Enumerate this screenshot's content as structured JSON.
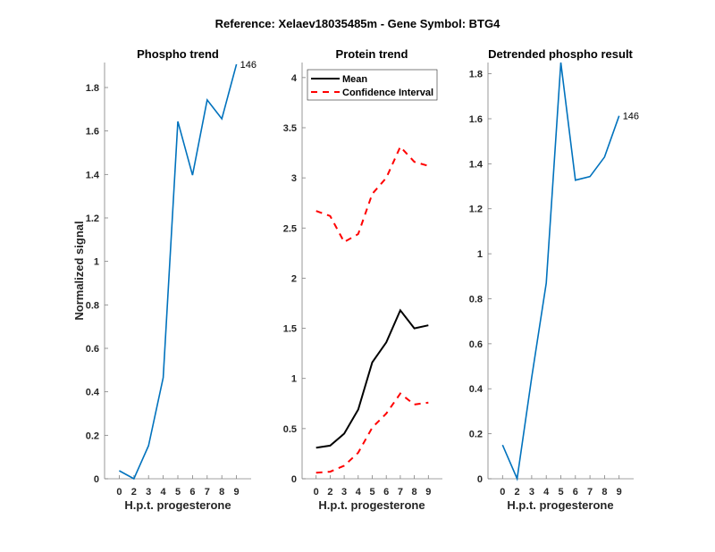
{
  "figure_title": "Reference:  Xelaev18035485m - Gene Symbol:  BTG4",
  "colors": {
    "phospho": "#0072BD",
    "mean": "#000000",
    "ci": "#FF0000",
    "axis": "#808080"
  },
  "chart_data": [
    {
      "type": "line",
      "title": "Phospho trend",
      "xlabel": "H.p.t. progesterone",
      "ylabel": "Normalized signal",
      "categories": [
        "0",
        "2",
        "3",
        "4",
        "5",
        "6",
        "7",
        "8",
        "9"
      ],
      "ylim": [
        0,
        1.915
      ],
      "yticks": [
        0,
        0.2,
        0.4,
        0.6,
        0.8,
        1,
        1.2,
        1.4,
        1.6,
        1.8
      ],
      "ytick_labels": [
        "0",
        "0.2",
        "0.4",
        "0.6",
        "0.8",
        "1",
        "1.2",
        "1.4",
        "1.6",
        "1.8"
      ],
      "series": [
        {
          "name": "phospho",
          "values": [
            0.037,
            0.0,
            0.152,
            0.465,
            1.644,
            1.397,
            1.743,
            1.656,
            1.907
          ]
        }
      ],
      "annotation": "146"
    },
    {
      "type": "line",
      "title": "Protein trend",
      "xlabel": "H.p.t. progesterone",
      "ylabel": "",
      "categories": [
        "0",
        "2",
        "3",
        "4",
        "5",
        "6",
        "7",
        "8",
        "9"
      ],
      "ylim": [
        0,
        4.15
      ],
      "yticks": [
        0,
        0.5,
        1,
        1.5,
        2,
        2.5,
        3,
        3.5,
        4
      ],
      "ytick_labels": [
        "0",
        "0.5",
        "1",
        "1.5",
        "2",
        "2.5",
        "3",
        "3.5",
        "4"
      ],
      "legend": {
        "position": "top-left",
        "entries": [
          "Mean",
          "Confidence Interval"
        ]
      },
      "series": [
        {
          "name": "Mean",
          "values": [
            0.31,
            0.33,
            0.45,
            0.69,
            1.16,
            1.36,
            1.68,
            1.5,
            1.53
          ]
        },
        {
          "name": "Confidence Interval (upper)",
          "values": [
            2.67,
            2.62,
            2.36,
            2.44,
            2.84,
            3.0,
            3.31,
            3.16,
            3.12
          ]
        },
        {
          "name": "Confidence Interval (lower)",
          "values": [
            0.06,
            0.07,
            0.13,
            0.26,
            0.51,
            0.65,
            0.85,
            0.74,
            0.76
          ]
        }
      ]
    },
    {
      "type": "line",
      "title": "Detrended phospho result",
      "xlabel": "H.p.t. progesterone",
      "ylabel": "",
      "categories": [
        "0",
        "2",
        "3",
        "4",
        "5",
        "6",
        "7",
        "8",
        "9"
      ],
      "ylim": [
        0,
        1.85
      ],
      "yticks": [
        0,
        0.2,
        0.4,
        0.6,
        0.8,
        1,
        1.2,
        1.4,
        1.6,
        1.8
      ],
      "ytick_labels": [
        "0",
        "0.2",
        "0.4",
        "0.6",
        "0.8",
        "1",
        "1.2",
        "1.4",
        "1.6",
        "1.8"
      ],
      "series": [
        {
          "name": "detrended",
          "values": [
            0.15,
            0.0,
            0.45,
            0.87,
            1.85,
            1.327,
            1.343,
            1.43,
            1.613
          ]
        }
      ],
      "annotation": "146"
    }
  ]
}
